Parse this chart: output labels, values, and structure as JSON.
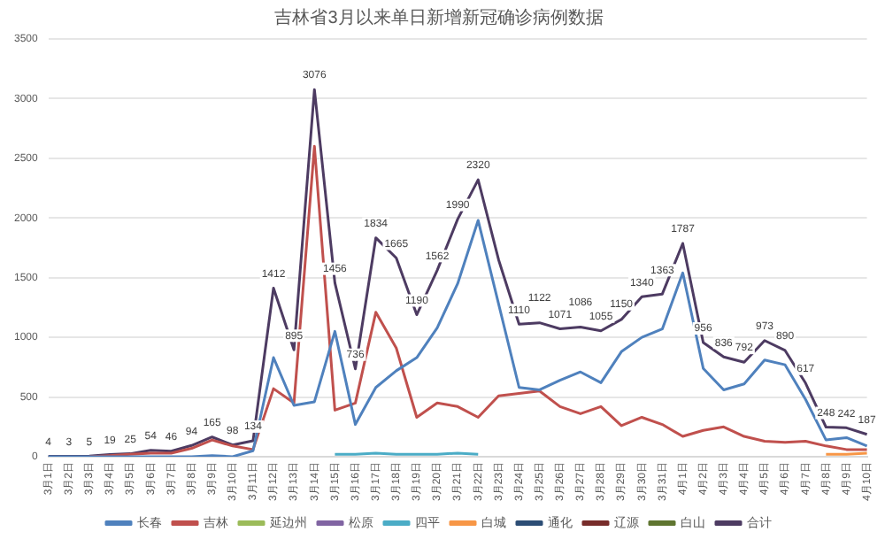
{
  "chart_data": {
    "type": "line",
    "title": "吉林省3月以来单日新增新冠确诊病例数据",
    "categories": [
      "3月1日",
      "3月2日",
      "3月3日",
      "3月4日",
      "3月5日",
      "3月6日",
      "3月7日",
      "3月8日",
      "3月9日",
      "3月10日",
      "3月11日",
      "3月12日",
      "3月13日",
      "3月14日",
      "3月15日",
      "3月16日",
      "3月17日",
      "3月18日",
      "3月19日",
      "3月20日",
      "3月21日",
      "3月22日",
      "3月23日",
      "3月24日",
      "3月25日",
      "3月26日",
      "3月27日",
      "3月28日",
      "3月29日",
      "3月30日",
      "3月31日",
      "4月1日",
      "4月2日",
      "4月3日",
      "4月4日",
      "4月5日",
      "4月6日",
      "4月7日",
      "4月8日",
      "4月9日",
      "4月10日"
    ],
    "series": [
      {
        "name": "长春",
        "color": "#4f81bd",
        "values": [
          0,
          0,
          0,
          0,
          0,
          0,
          0,
          0,
          10,
          0,
          50,
          830,
          430,
          460,
          1050,
          270,
          580,
          720,
          830,
          1080,
          1450,
          1980,
          1280,
          580,
          560,
          640,
          710,
          620,
          880,
          1000,
          1070,
          1540,
          740,
          560,
          610,
          810,
          770,
          480,
          140,
          160,
          90
        ]
      },
      {
        "name": "吉林",
        "color": "#c0504d",
        "values": [
          null,
          null,
          0,
          10,
          20,
          30,
          30,
          70,
          140,
          90,
          60,
          570,
          450,
          2600,
          390,
          450,
          1210,
          910,
          330,
          450,
          420,
          330,
          510,
          530,
          550,
          420,
          360,
          420,
          260,
          330,
          270,
          170,
          220,
          250,
          170,
          130,
          120,
          130,
          90,
          60,
          60
        ]
      },
      {
        "name": "延边州",
        "color": "#9bbb59",
        "values": [
          null,
          null,
          null,
          null,
          null,
          null,
          null,
          null,
          null,
          null,
          null,
          null,
          null,
          null,
          null,
          null,
          null,
          null,
          null,
          null,
          null,
          null,
          null,
          null,
          null,
          null,
          null,
          null,
          null,
          null,
          null,
          null,
          null,
          null,
          null,
          null,
          null,
          null,
          null,
          null,
          null
        ]
      },
      {
        "name": "松原",
        "color": "#8064a2",
        "values": [
          null,
          null,
          null,
          null,
          null,
          null,
          null,
          null,
          null,
          null,
          null,
          null,
          null,
          null,
          null,
          null,
          null,
          null,
          null,
          null,
          null,
          null,
          null,
          null,
          null,
          null,
          null,
          null,
          null,
          null,
          null,
          null,
          null,
          null,
          null,
          null,
          null,
          null,
          null,
          null,
          null
        ]
      },
      {
        "name": "四平",
        "color": "#4bacc6",
        "values": [
          null,
          null,
          null,
          null,
          null,
          null,
          null,
          null,
          null,
          null,
          null,
          null,
          null,
          null,
          20,
          20,
          30,
          20,
          20,
          20,
          30,
          20,
          null,
          null,
          null,
          null,
          null,
          null,
          null,
          null,
          null,
          null,
          null,
          null,
          null,
          null,
          null,
          null,
          null,
          null,
          null
        ]
      },
      {
        "name": "白城",
        "color": "#f79646",
        "values": [
          null,
          null,
          null,
          null,
          null,
          null,
          null,
          null,
          null,
          null,
          null,
          null,
          null,
          null,
          null,
          null,
          null,
          null,
          null,
          null,
          null,
          null,
          null,
          null,
          null,
          null,
          null,
          null,
          null,
          null,
          null,
          null,
          null,
          null,
          null,
          null,
          null,
          null,
          20,
          20,
          30
        ]
      },
      {
        "name": "通化",
        "color": "#2c4d75",
        "values": [
          null,
          null,
          null,
          null,
          null,
          null,
          null,
          null,
          null,
          null,
          null,
          null,
          null,
          null,
          null,
          null,
          null,
          null,
          null,
          null,
          null,
          null,
          null,
          null,
          null,
          null,
          null,
          null,
          null,
          null,
          null,
          null,
          null,
          null,
          null,
          null,
          null,
          null,
          null,
          null,
          null
        ]
      },
      {
        "name": "辽源",
        "color": "#772c2a",
        "values": [
          null,
          null,
          null,
          null,
          null,
          null,
          null,
          null,
          null,
          null,
          null,
          null,
          null,
          null,
          null,
          null,
          null,
          null,
          null,
          null,
          null,
          null,
          null,
          null,
          null,
          null,
          null,
          null,
          null,
          null,
          null,
          null,
          null,
          null,
          null,
          null,
          null,
          null,
          null,
          null,
          null
        ]
      },
      {
        "name": "白山",
        "color": "#5f7530",
        "values": [
          null,
          null,
          null,
          null,
          null,
          null,
          null,
          null,
          null,
          null,
          null,
          null,
          null,
          null,
          null,
          null,
          null,
          null,
          null,
          null,
          null,
          null,
          null,
          null,
          null,
          null,
          null,
          null,
          null,
          null,
          null,
          null,
          null,
          null,
          null,
          null,
          null,
          null,
          null,
          null,
          null
        ]
      },
      {
        "name": "合计",
        "color": "#4d3b62",
        "values": [
          4,
          3,
          5,
          19,
          25,
          54,
          46,
          94,
          165,
          98,
          134,
          1412,
          895,
          3076,
          1456,
          736,
          1834,
          1665,
          1190,
          1562,
          1990,
          2320,
          1650,
          1110,
          1122,
          1071,
          1086,
          1055,
          1150,
          1340,
          1363,
          1787,
          956,
          836,
          792,
          973,
          890,
          617,
          248,
          242,
          187
        ],
        "value_labels": [
          "4",
          "3",
          "5",
          "19",
          "25",
          "54",
          "46",
          "94",
          "165",
          "98",
          "134",
          "1412",
          "895",
          "3076",
          "1456",
          "736",
          "1834",
          "1665",
          "1190",
          "1562",
          "1990",
          "2320",
          null,
          "1110",
          "1122",
          "1071",
          "1086",
          "1055",
          "1150",
          "1340",
          "1363",
          "1787",
          "956",
          "836",
          "792",
          "973",
          "890",
          "617",
          "248",
          "242",
          "187"
        ]
      }
    ],
    "ylim": [
      0,
      3500
    ],
    "yticks": [
      0,
      500,
      1000,
      1500,
      2000,
      2500,
      3000,
      3500
    ],
    "grid": "y",
    "legend": "bottom",
    "marker": "none",
    "line_style": "solid"
  }
}
